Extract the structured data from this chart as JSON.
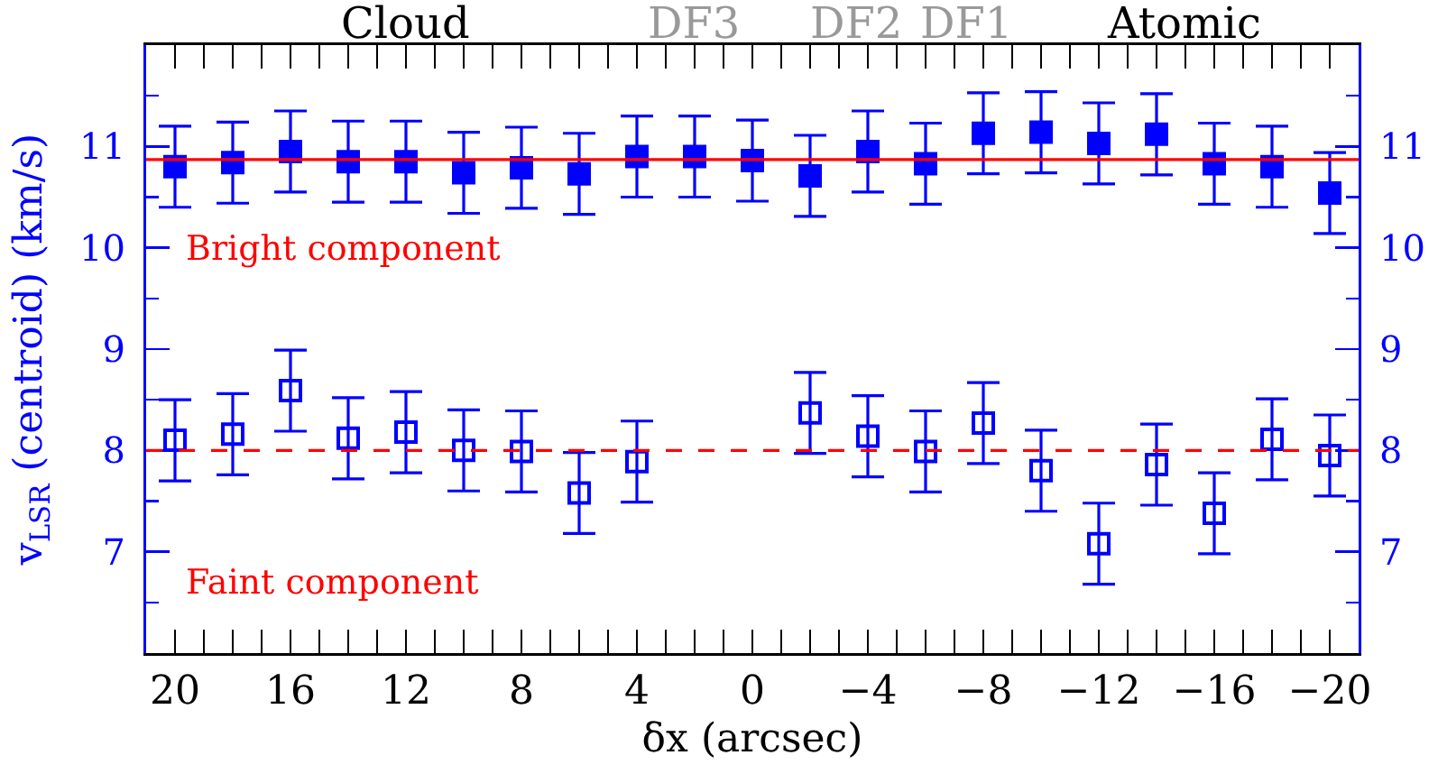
{
  "chart_data": {
    "type": "scatter",
    "xlabel": "δx (arcsec)",
    "ylabel": "v$_{LSR}$ (centroid) (km/s)",
    "x": [
      20,
      18,
      16,
      14,
      12,
      10,
      8,
      6,
      4,
      2,
      0,
      -2,
      -4,
      -6,
      -8,
      -10,
      -12,
      -14,
      -16,
      -18,
      -20
    ],
    "series": [
      {
        "color": "#0000ff",
        "values": [
          10.8,
          10.84,
          10.95,
          10.85,
          10.85,
          10.74,
          10.79,
          10.73,
          10.9,
          10.9,
          10.86,
          10.71,
          10.95,
          10.83,
          11.13,
          11.14,
          11.03,
          11.12,
          10.83,
          10.8,
          10.54
        ],
        "errors": [
          0.4,
          0.4,
          0.4,
          0.4,
          0.4,
          0.4,
          0.4,
          0.4,
          0.4,
          0.4,
          0.4,
          0.4,
          0.4,
          0.4,
          0.4,
          0.4,
          0.4,
          0.4,
          0.4,
          0.4,
          0.4
        ]
      },
      {
        "color": "#0000ff",
        "marker": "square-open",
        "values": [
          8.1,
          8.16,
          8.59,
          8.12,
          8.18,
          8.0,
          7.99,
          7.58,
          7.89,
          null,
          null,
          8.37,
          8.14,
          7.99,
          8.27,
          7.8,
          7.08,
          7.86,
          7.38,
          8.11,
          7.95
        ],
        "errors": [
          0.4,
          0.4,
          0.4,
          0.4,
          0.4,
          0.4,
          0.4,
          0.4,
          0.4,
          null,
          null,
          0.4,
          0.4,
          0.4,
          0.4,
          0.4,
          0.4,
          0.4,
          0.4,
          0.4,
          0.4
        ]
      }
    ],
    "xlim": [
      21,
      -21
    ],
    "xticks": [
      20,
      {
        "value": 19,
        "label": null
      },
      {
        "value": 18,
        "label": null
      },
      {
        "value": 17,
        "label": null
      },
      16,
      {
        "value": 15,
        "label": null
      },
      {
        "value": 14,
        "label": null
      },
      {
        "value": 13,
        "label": null
      },
      12,
      {
        "value": 11,
        "label": null
      },
      {
        "value": 10,
        "label": null
      },
      {
        "value": 9,
        "label": null
      },
      8,
      {
        "value": 7,
        "label": null
      },
      {
        "value": 6,
        "label": null
      },
      {
        "value": 5,
        "label": null
      },
      4,
      {
        "value": 3,
        "label": null
      },
      {
        "value": 2,
        "label": null
      },
      {
        "value": 1,
        "label": null
      },
      0,
      {
        "value": -1,
        "label": null
      },
      {
        "value": -2,
        "label": null
      },
      {
        "value": -3,
        "label": null
      },
      {
        "value": -4,
        "label": "−4"
      },
      {
        "value": -5,
        "label": null
      },
      {
        "value": -6,
        "label": null
      },
      {
        "value": -7,
        "label": null
      },
      {
        "value": -8,
        "label": "−8"
      },
      {
        "value": -9,
        "label": null
      },
      {
        "value": -10,
        "label": null
      },
      {
        "value": -11,
        "label": null
      },
      {
        "value": -12,
        "label": "−12"
      },
      {
        "value": -13,
        "label": null
      },
      {
        "value": -14,
        "label": null
      },
      {
        "value": -15,
        "label": null
      },
      {
        "value": -16,
        "label": "−16"
      },
      {
        "value": -17,
        "label": null
      },
      {
        "value": -18,
        "label": null
      },
      {
        "value": -19,
        "label": null
      },
      {
        "value": -20,
        "label": "−20"
      }
    ],
    "ylim": [
      6,
      12
    ],
    "yticks": [
      {
        "value": 6.5,
        "label": null
      },
      7,
      {
        "value": 7.5,
        "label": null
      },
      8,
      {
        "value": 8.5,
        "label": null
      },
      9,
      {
        "value": 9.5,
        "label": null
      },
      10,
      {
        "value": 10.5,
        "label": null
      },
      11,
      {
        "value": 11.5,
        "label": null
      }
    ],
    "y2lim": [
      6,
      12
    ],
    "y2ticks": [
      {
        "value": 6.5,
        "label": null
      },
      7,
      {
        "value": 7.5,
        "label": null
      },
      8,
      {
        "value": 8.5,
        "label": null
      },
      9,
      {
        "value": 9.5,
        "label": null
      },
      10,
      {
        "value": 10.5,
        "label": null
      },
      11,
      {
        "value": 11.5,
        "label": null
      }
    ],
    "ref_lines": [
      {
        "axis": "y",
        "value": 10.87,
        "label": "Bright component",
        "color": "#ff0000",
        "line_style": "solid"
      },
      {
        "axis": "y",
        "value": 8.0,
        "label": "Faint component",
        "color": "#ff0000",
        "line_style": "dashed"
      }
    ],
    "annotations": [
      "Cloud",
      "DF3",
      "DF2",
      "DF1",
      "Atomic"
    ],
    "marker": "square",
    "grid": false
  }
}
